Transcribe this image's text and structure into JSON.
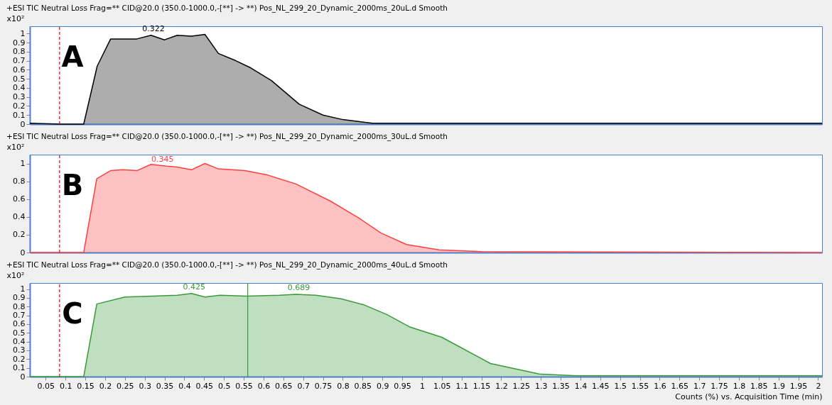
{
  "chart_data": [
    {
      "type": "area",
      "title": "+ESI TIC Neutral Loss Frag=** CID@20.0 (350.0-1000.0,-[**] -> **) Pos_NL_299_20_Dynamic_2000ms_20uL.d  Smooth",
      "ylabel": "x10²",
      "x": [
        0.01,
        0.09,
        0.146,
        0.18,
        0.214,
        0.28,
        0.316,
        0.35,
        0.382,
        0.418,
        0.452,
        0.486,
        0.53,
        0.568,
        0.62,
        0.69,
        0.75,
        0.8,
        0.875,
        1.0,
        2.01
      ],
      "series": [
        {
          "color": "#000000",
          "values": [
            0.01,
            0,
            0,
            0.64,
            0.94,
            0.94,
            0.98,
            0.93,
            0.98,
            0.97,
            0.99,
            0.78,
            0.7,
            0.62,
            0.48,
            0.22,
            0.1,
            0.05,
            0.01,
            0.01,
            0.01
          ]
        }
      ],
      "xlim": [
        0.01,
        2.01
      ],
      "ylim": [
        0,
        1.08
      ],
      "yticks": [
        0,
        0.1,
        0.2,
        0.3,
        0.4,
        0.5,
        0.6,
        0.7,
        0.8,
        0.9,
        1
      ],
      "tick_labels": "y",
      "ref_lines": [
        {
          "axis": "x",
          "value": 0.085,
          "color": "#ff0000",
          "line_style": "dashed"
        }
      ],
      "annotations": [
        "A",
        {
          "text": "0.322",
          "x": 0.322,
          "y": 0.98
        }
      ]
    },
    {
      "type": "area",
      "title": "+ESI TIC Neutral Loss Frag=** CID@20.0 (350.0-1000.0,-[**] -> **) Pos_NL_299_20_Dynamic_2000ms_30uL.d  Smooth",
      "ylabel": "x10²",
      "x": [
        0.01,
        0.146,
        0.179,
        0.214,
        0.245,
        0.28,
        0.316,
        0.355,
        0.382,
        0.418,
        0.452,
        0.486,
        0.553,
        0.611,
        0.682,
        0.768,
        0.84,
        0.896,
        0.961,
        1.043,
        1.15,
        2.01
      ],
      "series": [
        {
          "color": "#ff4040",
          "values": [
            0,
            0,
            0.83,
            0.92,
            0.93,
            0.92,
            0.99,
            0.97,
            0.96,
            0.93,
            1.0,
            0.94,
            0.92,
            0.87,
            0.77,
            0.58,
            0.39,
            0.22,
            0.09,
            0.03,
            0.01,
            0
          ]
        }
      ],
      "xlim": [
        0.01,
        2.01
      ],
      "ylim": [
        0,
        1.1
      ],
      "yticks": [
        0,
        0.2,
        0.4,
        0.6,
        0.8,
        1
      ],
      "tick_labels": "y",
      "ref_lines": [
        {
          "axis": "x",
          "value": 0.085,
          "color": "#ff0000",
          "line_style": "dashed"
        }
      ],
      "annotations": [
        "B",
        {
          "text": "0.345",
          "x": 0.345,
          "y": 0.97
        }
      ]
    },
    {
      "type": "area",
      "title": "+ESI TIC Neutral Loss Frag=** CID@20.0 (350.0-1000.0,-[**] -> **) Pos_NL_299_20_Dynamic_2000ms_40uL.d  Smooth",
      "ylabel": "x10²",
      "xlabel": "Counts (%) vs. Acquisition Time (min)",
      "x": [
        0.01,
        0.146,
        0.179,
        0.25,
        0.32,
        0.382,
        0.418,
        0.452,
        0.49,
        0.557,
        0.64,
        0.682,
        0.732,
        0.796,
        0.854,
        0.911,
        0.968,
        1.05,
        1.173,
        1.296,
        1.39,
        2.01
      ],
      "series": [
        {
          "color": "#3a9a3a",
          "values": [
            0,
            0,
            0.83,
            0.91,
            0.92,
            0.93,
            0.95,
            0.91,
            0.93,
            0.92,
            0.93,
            0.94,
            0.93,
            0.89,
            0.82,
            0.71,
            0.57,
            0.45,
            0.15,
            0.03,
            0.01,
            0.01
          ]
        }
      ],
      "xlim": [
        0.01,
        2.01
      ],
      "ylim": [
        0,
        1.07
      ],
      "yticks": [
        0,
        0.1,
        0.2,
        0.3,
        0.4,
        0.5,
        0.6,
        0.7,
        0.8,
        0.9,
        1
      ],
      "xticks": [
        0.05,
        0.1,
        0.15,
        0.2,
        0.25,
        0.3,
        0.35,
        0.4,
        0.45,
        0.5,
        0.55,
        0.6,
        0.65,
        0.7,
        0.75,
        0.8,
        0.85,
        0.9,
        0.95,
        1,
        1.05,
        1.1,
        1.15,
        1.2,
        1.25,
        1.3,
        1.35,
        1.4,
        1.45,
        1.5,
        1.55,
        1.6,
        1.65,
        1.7,
        1.75,
        1.8,
        1.85,
        1.9,
        1.95,
        2
      ],
      "ref_lines": [
        {
          "axis": "x",
          "value": 0.085,
          "color": "#ff0000",
          "line_style": "dashed"
        },
        {
          "axis": "x",
          "value": 0.56,
          "color": "#3a9a3a",
          "line_style": "solid"
        }
      ],
      "annotations": [
        "C",
        {
          "text": "0.425",
          "x": 0.425,
          "y": 0.95
        },
        {
          "text": "0.689",
          "x": 0.689,
          "y": 0.94
        }
      ]
    }
  ]
}
